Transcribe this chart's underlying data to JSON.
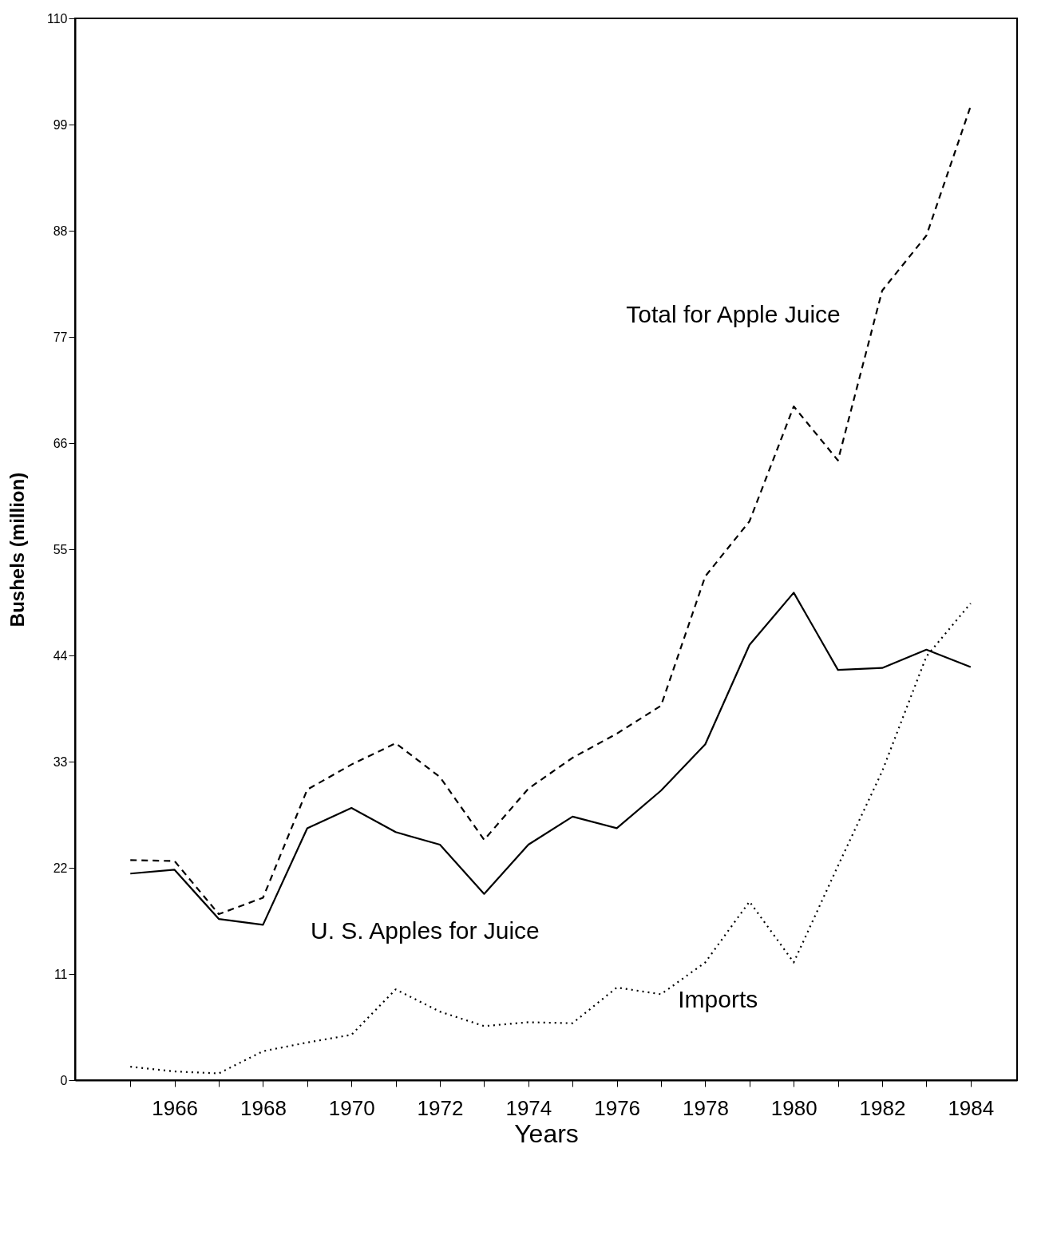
{
  "chart_data": {
    "type": "line",
    "xlabel": "Years",
    "ylabel": "Bushels  (million)",
    "x": [
      1965,
      1966,
      1967,
      1968,
      1969,
      1970,
      1971,
      1972,
      1973,
      1974,
      1975,
      1976,
      1977,
      1978,
      1979,
      1980,
      1981,
      1982,
      1983,
      1984
    ],
    "series": [
      {
        "name": "Total for Apple Juice",
        "color": "#000000",
        "line_style": "dashed",
        "values": [
          22.8,
          22.7,
          17.2,
          18.9,
          30.1,
          32.7,
          34.9,
          31.4,
          24.9,
          30.2,
          33.4,
          35.9,
          38.8,
          52.2,
          57.9,
          69.8,
          64.2,
          81.8,
          87.5,
          100.9
        ]
      },
      {
        "name": "U. S. Apples for Juice",
        "color": "#000000",
        "line_style": "solid",
        "values": [
          21.4,
          21.8,
          16.7,
          16.1,
          26.1,
          28.2,
          25.7,
          24.4,
          19.3,
          24.4,
          27.3,
          26.1,
          30.0,
          34.8,
          45.1,
          50.5,
          42.5,
          42.7,
          44.6,
          42.8
        ]
      },
      {
        "name": "Imports",
        "color": "#000000",
        "line_style": "dotted",
        "values": [
          1.4,
          0.9,
          0.7,
          3.0,
          3.9,
          4.7,
          9.4,
          7.1,
          5.6,
          6.0,
          5.9,
          9.6,
          8.9,
          12.2,
          18.5,
          12.2,
          22.2,
          32.0,
          43.9,
          49.4
        ]
      }
    ],
    "xlim": [
      1963.75,
      1985.05
    ],
    "ylim": [
      0,
      110
    ],
    "xticks": [
      {
        "value": 1965,
        "label": null
      },
      1966,
      {
        "value": 1967,
        "label": null
      },
      1968,
      {
        "value": 1969,
        "label": null
      },
      1970,
      {
        "value": 1971,
        "label": null
      },
      1972,
      {
        "value": 1973,
        "label": null
      },
      1974,
      {
        "value": 1975,
        "label": null
      },
      1976,
      {
        "value": 1977,
        "label": null
      },
      1978,
      {
        "value": 1979,
        "label": null
      },
      1980,
      {
        "value": 1981,
        "label": null
      },
      1982,
      {
        "value": 1983,
        "label": null
      },
      1984
    ],
    "yticks": [
      0,
      11,
      22,
      33,
      44,
      55,
      66,
      77,
      88,
      99,
      110
    ],
    "grid": false,
    "legend": false,
    "marker": "none"
  }
}
